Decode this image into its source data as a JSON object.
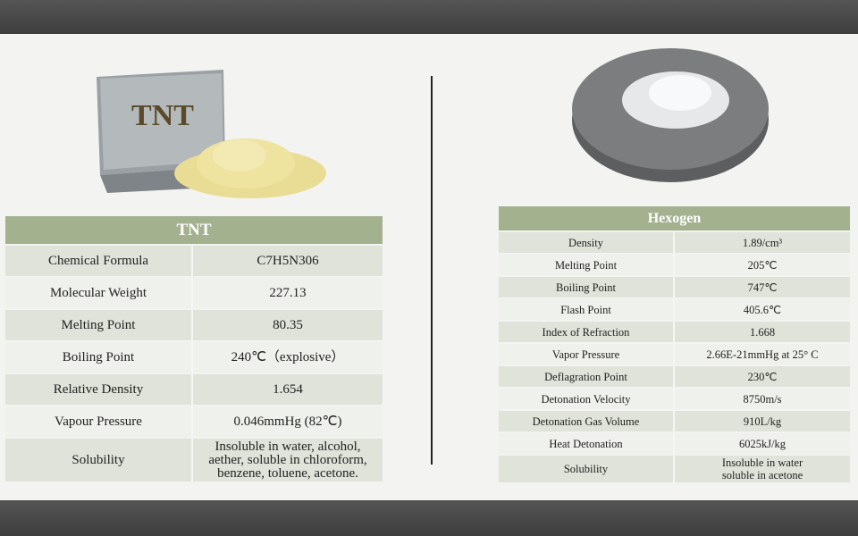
{
  "tnt": {
    "image_label": "TNT",
    "title": "TNT",
    "rows": [
      {
        "key": "Chemical Formula",
        "value": "C7H5N306"
      },
      {
        "key": "Molecular Weight",
        "value": "227.13"
      },
      {
        "key": "Melting Point",
        "value": "80.35"
      },
      {
        "key": "Boiling Point",
        "value": "240℃（explosive）"
      },
      {
        "key": "Relative Density",
        "value": "1.654"
      },
      {
        "key": "Vapour Pressure",
        "value": "0.046mmHg (82℃)"
      },
      {
        "key": "Solubility",
        "value": "Insoluble in water, alcohol, aether, soluble in chloroform, benzene, toluene, acetone."
      }
    ]
  },
  "hexogen": {
    "title": "Hexogen",
    "rows": [
      {
        "key": "Density",
        "value": "1.89/cm³"
      },
      {
        "key": "Melting Point",
        "value": "205℃"
      },
      {
        "key": "Boiling Point",
        "value": "747℃"
      },
      {
        "key": "Flash Point",
        "value": "405.6℃"
      },
      {
        "key": "Index of Refraction",
        "value": "1.668"
      },
      {
        "key": "Vapor Pressure",
        "value": "2.66E-21mmHg at 25° C"
      },
      {
        "key": "Deflagration Point",
        "value": "230℃"
      },
      {
        "key": "Detonation Velocity",
        "value": "8750m/s"
      },
      {
        "key": "Detonation Gas Volume",
        "value": "910L/kg"
      },
      {
        "key": "Heat Detonation",
        "value": "6025kJ/kg"
      },
      {
        "key": "Solubility",
        "value": "Insoluble in water soluble in acetone"
      }
    ]
  }
}
